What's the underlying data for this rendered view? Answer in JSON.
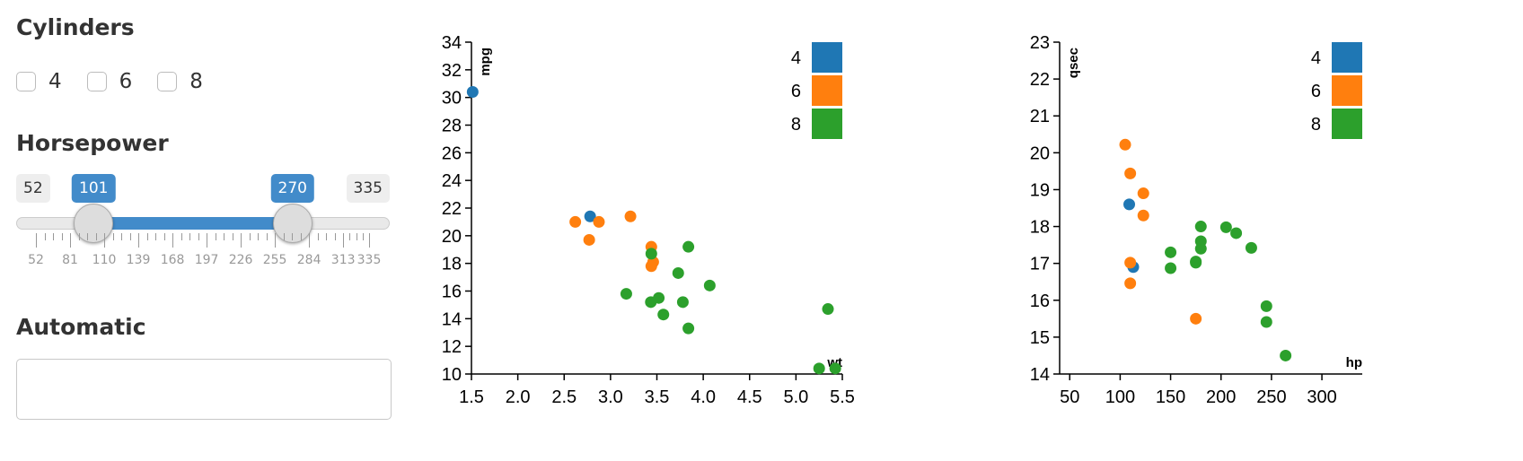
{
  "filters": {
    "cylinders": {
      "title": "Cylinders",
      "options": [
        {
          "label": "4",
          "checked": false
        },
        {
          "label": "6",
          "checked": false
        },
        {
          "label": "8",
          "checked": false
        }
      ]
    },
    "horsepower": {
      "title": "Horsepower",
      "min": 52,
      "max": 335,
      "from": 101,
      "to": 270,
      "min_label": "52",
      "max_label": "335",
      "from_label": "101",
      "to_label": "270",
      "grid_labels": [
        "52",
        "81",
        "110",
        "139",
        "168",
        "197",
        "226",
        "255",
        "284",
        "313",
        "335"
      ],
      "grid_values": [
        52,
        81,
        110,
        139,
        168,
        197,
        226,
        255,
        284,
        313,
        335
      ],
      "accent": "#428bca"
    },
    "automatic": {
      "title": "Automatic",
      "value": ""
    }
  },
  "chart_data": [
    {
      "type": "scatter",
      "xlabel": "wt",
      "ylabel": "mpg",
      "xlim": [
        1.5,
        5.5
      ],
      "ylim": [
        10,
        34
      ],
      "xticks": [
        1.5,
        2.0,
        2.5,
        3.0,
        3.5,
        4.0,
        4.5,
        5.0,
        5.5
      ],
      "yticks": [
        10,
        12,
        14,
        16,
        18,
        20,
        22,
        24,
        26,
        28,
        30,
        32,
        34
      ],
      "legend_placement": "top-right",
      "grid": false,
      "series": [
        {
          "name": "4",
          "color": "#1f77b4",
          "points": [
            [
              1.513,
              30.4
            ],
            [
              2.78,
              21.4
            ]
          ]
        },
        {
          "name": "6",
          "color": "#ff7f0e",
          "points": [
            [
              2.62,
              21.0
            ],
            [
              2.875,
              21.0
            ],
            [
              3.215,
              21.4
            ],
            [
              2.77,
              19.7
            ],
            [
              3.44,
              19.2
            ],
            [
              3.46,
              18.1
            ],
            [
              3.44,
              17.8
            ]
          ]
        },
        {
          "name": "8",
          "color": "#2ca02c",
          "points": [
            [
              3.44,
              18.7
            ],
            [
              3.84,
              19.2
            ],
            [
              3.73,
              17.3
            ],
            [
              4.07,
              16.4
            ],
            [
              3.17,
              15.8
            ],
            [
              3.52,
              15.5
            ],
            [
              3.435,
              15.2
            ],
            [
              3.78,
              15.2
            ],
            [
              3.57,
              14.3
            ],
            [
              3.84,
              13.3
            ],
            [
              5.345,
              14.7
            ],
            [
              5.25,
              10.4
            ],
            [
              5.424,
              10.4
            ]
          ]
        }
      ]
    },
    {
      "type": "scatter",
      "xlabel": "hp",
      "ylabel": "qsec",
      "xlim": [
        40,
        340
      ],
      "ylim": [
        14,
        23
      ],
      "xticks": [
        50,
        100,
        150,
        200,
        250,
        300
      ],
      "yticks": [
        14,
        15,
        16,
        17,
        18,
        19,
        20,
        21,
        22,
        23
      ],
      "legend_placement": "top-right",
      "grid": false,
      "series": [
        {
          "name": "4",
          "color": "#1f77b4",
          "points": [
            [
              109,
              18.6
            ],
            [
              113,
              16.9
            ]
          ]
        },
        {
          "name": "6",
          "color": "#ff7f0e",
          "points": [
            [
              105,
              20.22
            ],
            [
              110,
              19.44
            ],
            [
              123,
              18.9
            ],
            [
              123,
              18.3
            ],
            [
              110,
              17.02
            ],
            [
              110,
              16.46
            ],
            [
              175,
              15.5
            ]
          ]
        },
        {
          "name": "8",
          "color": "#2ca02c",
          "points": [
            [
              150,
              17.3
            ],
            [
              150,
              16.87
            ],
            [
              175,
              17.05
            ],
            [
              175,
              17.02
            ],
            [
              180,
              18.0
            ],
            [
              180,
              17.6
            ],
            [
              180,
              17.4
            ],
            [
              205,
              17.98
            ],
            [
              215,
              17.82
            ],
            [
              230,
              17.42
            ],
            [
              245,
              15.84
            ],
            [
              245,
              15.41
            ],
            [
              264,
              14.5
            ]
          ]
        }
      ]
    }
  ]
}
